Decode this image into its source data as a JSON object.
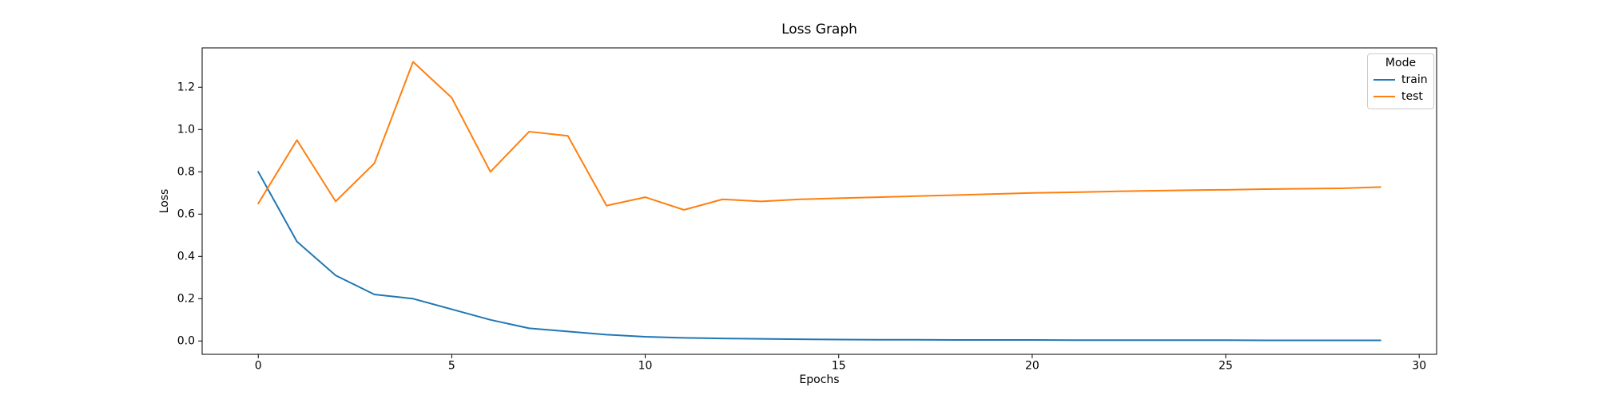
{
  "title": "Loss Graph",
  "chart_data": {
    "type": "line",
    "title": "Loss Graph",
    "xlabel": "Epochs",
    "ylabel": "Loss",
    "x": [
      0,
      1,
      2,
      3,
      4,
      5,
      6,
      7,
      8,
      9,
      10,
      11,
      12,
      13,
      14,
      15,
      16,
      17,
      18,
      19,
      20,
      21,
      22,
      23,
      24,
      25,
      26,
      27,
      28,
      29
    ],
    "series": [
      {
        "name": "train",
        "color": "#1f77b4",
        "values": [
          0.8,
          0.47,
          0.31,
          0.22,
          0.2,
          0.15,
          0.1,
          0.06,
          0.045,
          0.03,
          0.02,
          0.015,
          0.012,
          0.01,
          0.008,
          0.007,
          0.006,
          0.006,
          0.005,
          0.005,
          0.005,
          0.004,
          0.004,
          0.004,
          0.004,
          0.004,
          0.003,
          0.003,
          0.003,
          0.003
        ]
      },
      {
        "name": "test",
        "color": "#ff7f0e",
        "values": [
          0.65,
          0.95,
          0.66,
          0.84,
          1.32,
          1.15,
          0.8,
          0.99,
          0.97,
          0.64,
          0.68,
          0.62,
          0.67,
          0.66,
          0.67,
          0.675,
          0.68,
          0.685,
          0.69,
          0.695,
          0.7,
          0.703,
          0.707,
          0.71,
          0.713,
          0.715,
          0.718,
          0.72,
          0.722,
          0.728
        ]
      }
    ],
    "xlim": [
      -1.45,
      30.45
    ],
    "ylim": [
      -0.063,
      1.386
    ],
    "xticks": [
      0,
      5,
      10,
      15,
      20,
      25,
      30
    ],
    "xtick_labels": [
      "0",
      "5",
      "10",
      "15",
      "20",
      "25",
      "30"
    ],
    "yticks": [
      0.0,
      0.2,
      0.4,
      0.6,
      0.8,
      1.0,
      1.2
    ],
    "ytick_labels": [
      "0.0",
      "0.2",
      "0.4",
      "0.6",
      "0.8",
      "1.0",
      "1.2"
    ],
    "grid": false,
    "legend_position": "upper right",
    "legend": {
      "title": "Mode",
      "entries": [
        "train",
        "test"
      ]
    }
  },
  "legend": {
    "title": "Mode",
    "train_label": "train",
    "test_label": "test"
  },
  "axes": {
    "xlabel": "Epochs",
    "ylabel": "Loss"
  },
  "colors": {
    "train": "#1f77b4",
    "test": "#ff7f0e",
    "axis": "#000000",
    "legend_border": "#cccccc",
    "background": "#ffffff"
  }
}
